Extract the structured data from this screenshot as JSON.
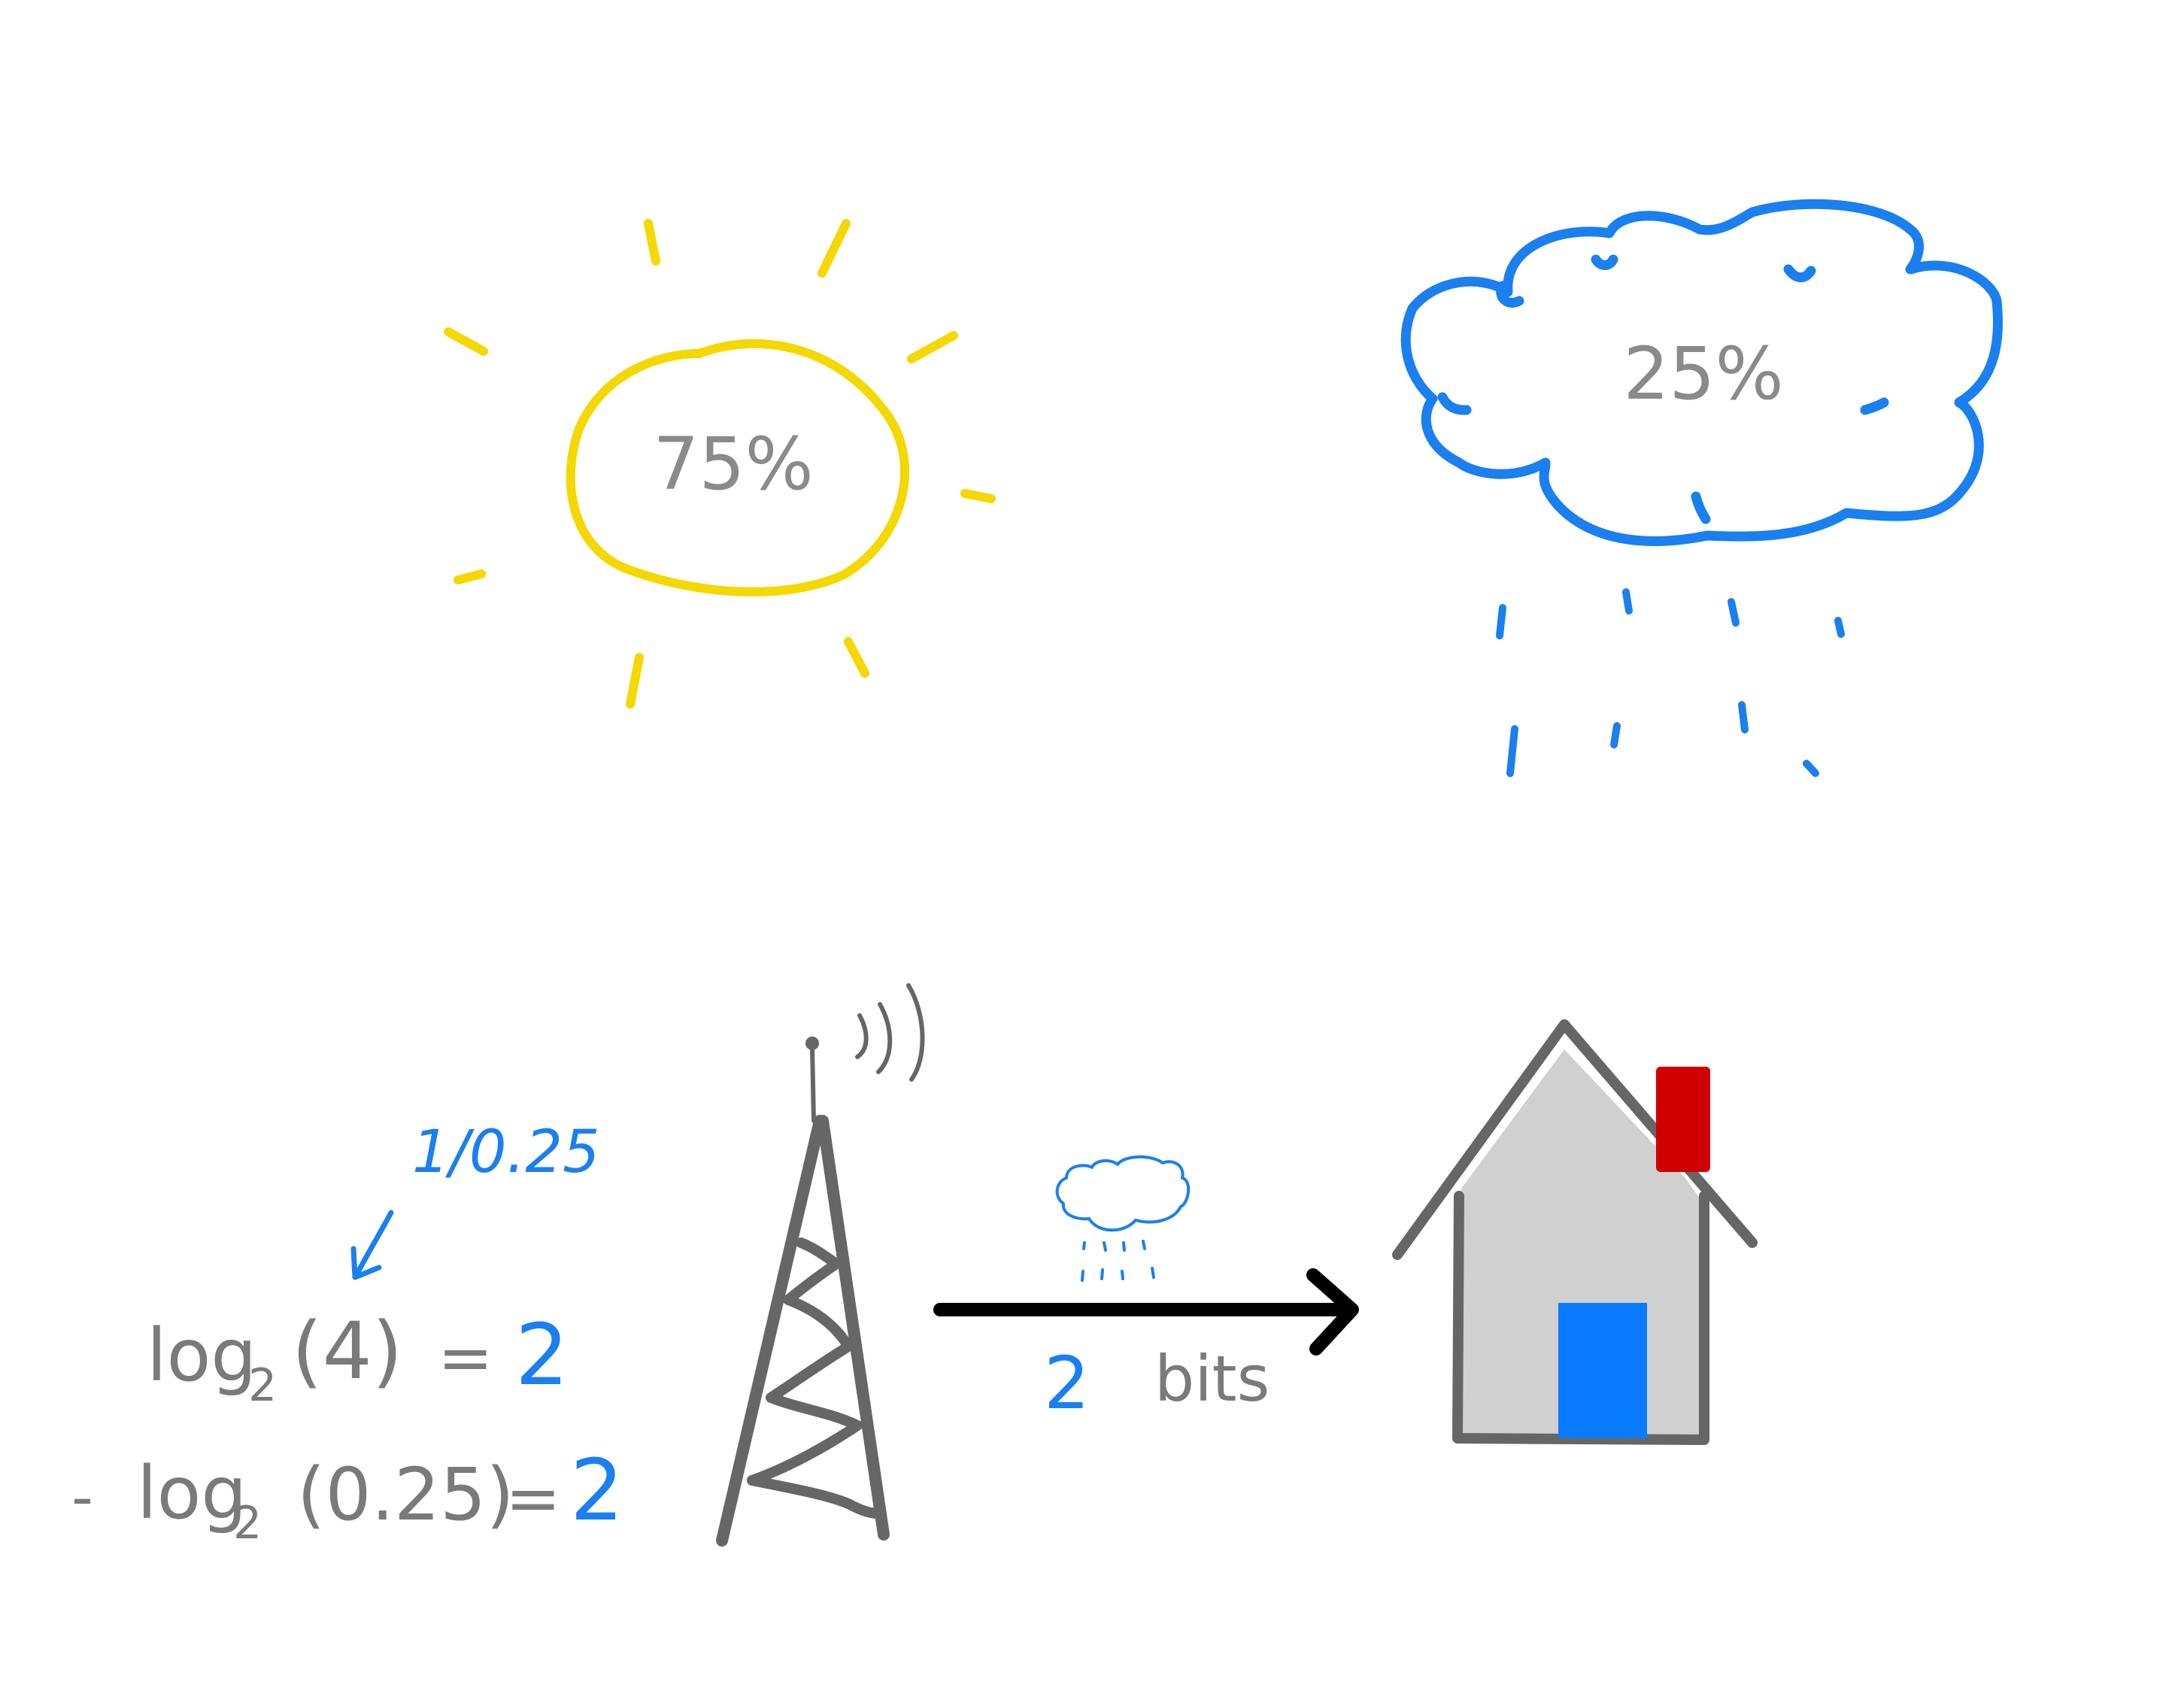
{
  "sun": {
    "label": "75%"
  },
  "cloud": {
    "label": "25%"
  },
  "formula": {
    "annotation": "1/0.25",
    "line1_lhs": "log",
    "line1_sub": "2",
    "line1_arg": "(4)",
    "line1_eq": "=",
    "line1_result": "2",
    "line2_neg": "-",
    "line2_lhs": "log",
    "line2_sub": "2",
    "line2_arg": "(0.25)",
    "line2_eq": "=",
    "line2_result": "2"
  },
  "transmission": {
    "count": "2",
    "unit": "bits"
  },
  "colors": {
    "sun": "#f5d800",
    "cloud": "#1a7ff0",
    "ink_gray": "#7a7a7a",
    "structure_gray": "#666666",
    "house_fill": "#d0d0d0",
    "door": "#0a7bff",
    "chimney": "#d00000",
    "arrow": "#000000"
  }
}
